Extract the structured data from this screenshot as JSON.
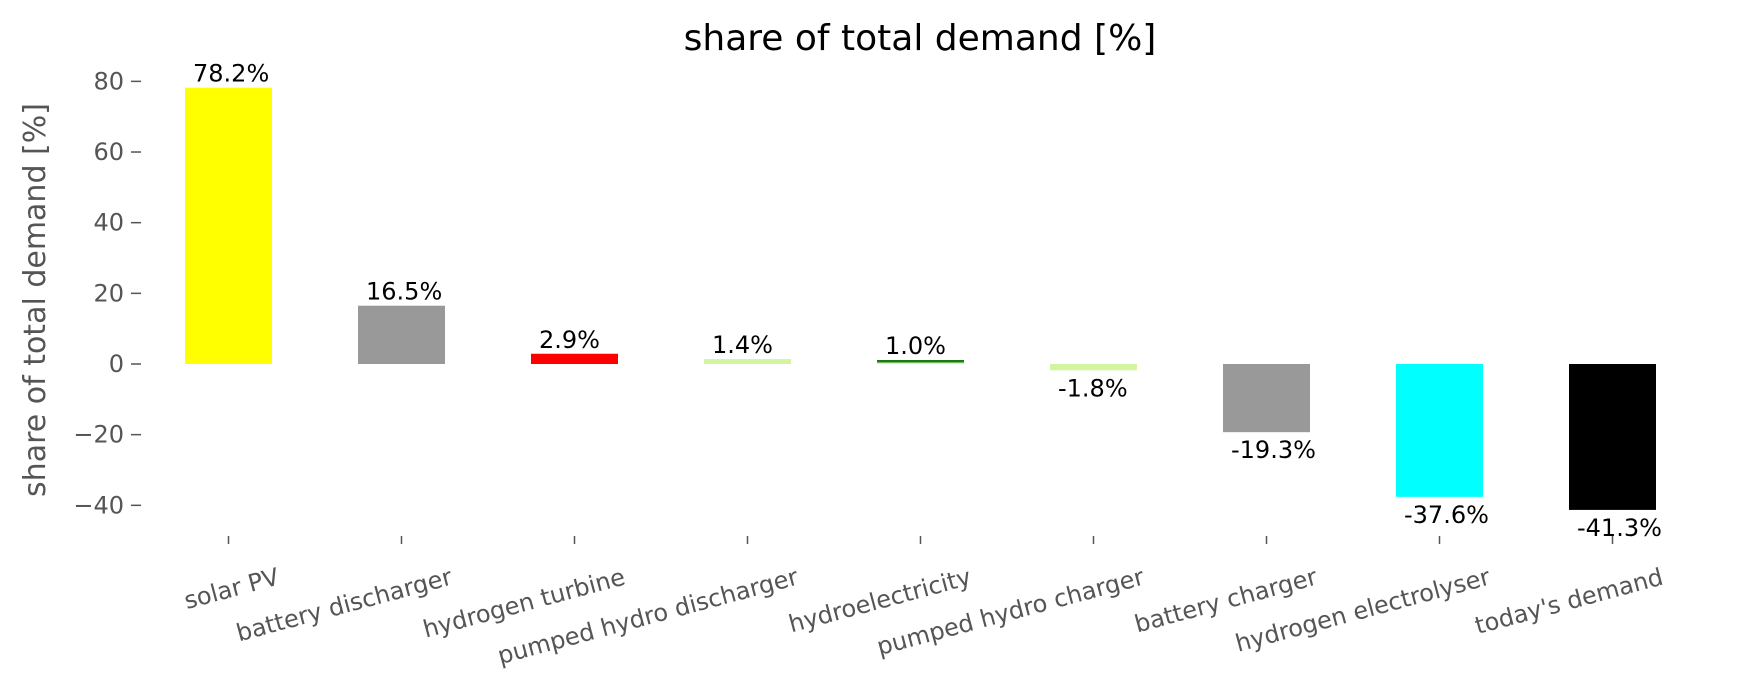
{
  "chart_data": {
    "type": "bar",
    "title": "share of total demand [%]",
    "xlabel": "",
    "ylabel": "share of total demand [%]",
    "ylim": [
      -48,
      87
    ],
    "yticks": [
      -40,
      -20,
      0,
      20,
      40,
      60,
      80
    ],
    "ytick_labels": [
      "−40",
      "−20",
      "0",
      "20",
      "40",
      "60",
      "80"
    ],
    "grid": false,
    "categories": [
      "solar PV",
      "battery discharger",
      "hydrogen turbine",
      "pumped hydro discharger",
      "hydroelectricity",
      "pumped hydro charger",
      "battery charger",
      "hydrogen electrolyser",
      "today's demand"
    ],
    "values": [
      78.2,
      16.5,
      2.9,
      1.4,
      1.0,
      -1.8,
      -19.3,
      -37.6,
      -41.3
    ],
    "data_labels": [
      "78.2%",
      "16.5%",
      "2.9%",
      "1.4%",
      "1.0%",
      "-1.8%",
      "-19.3%",
      "-37.6%",
      "-41.3%"
    ],
    "colors": [
      "#ffff00",
      "#999999",
      "#ff0000",
      "#d4f5a0",
      "#d4f5a0",
      "#d4f5a0",
      "#999999",
      "#00ffff",
      "#000000"
    ],
    "line_colors": [
      null,
      null,
      null,
      null,
      "#1a7a1a",
      null,
      null,
      null,
      null
    ]
  }
}
